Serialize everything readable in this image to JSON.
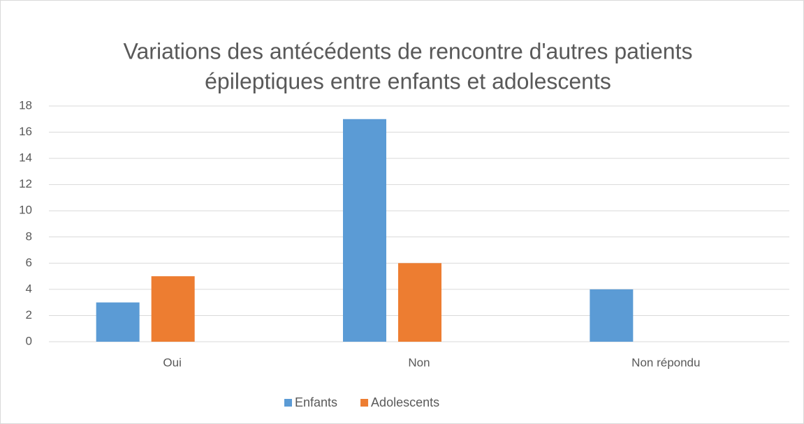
{
  "chart_data": {
    "type": "bar",
    "title": [
      "Variations des antécédents de rencontre d'autres patients",
      "épileptiques entre enfants et adolescents"
    ],
    "categories": [
      "Oui",
      "Non",
      "Non répondu"
    ],
    "series": [
      {
        "name": "Enfants",
        "color": "#5b9bd5",
        "values": [
          3,
          17,
          4
        ]
      },
      {
        "name": "Adolescents",
        "color": "#ed7d31",
        "values": [
          5,
          6,
          0
        ]
      }
    ],
    "ylim": [
      0,
      18
    ],
    "yticks": [
      0,
      2,
      4,
      6,
      8,
      10,
      12,
      14,
      16,
      18
    ],
    "grid": true,
    "legend": "bottom"
  }
}
